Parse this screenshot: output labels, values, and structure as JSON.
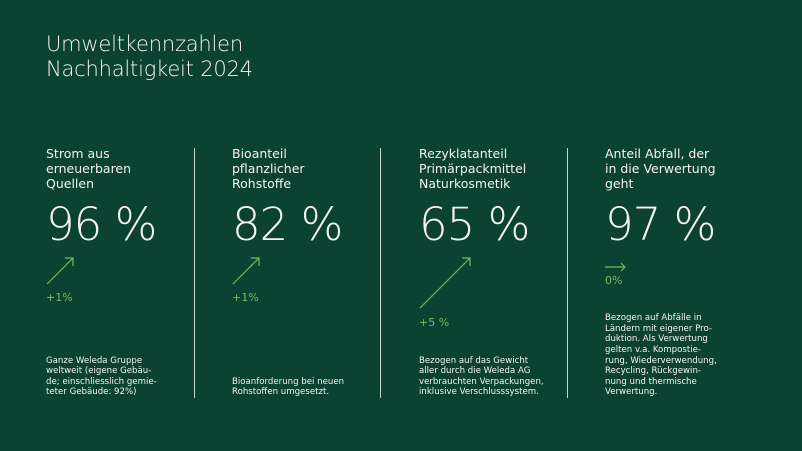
{
  "title": {
    "line1": "Umweltkennzahlen",
    "line2": "Nachhaltigkeit 2024"
  },
  "colors": {
    "background": "#0b4232",
    "accent": "#72bd5e",
    "text": "#f3f4ee"
  },
  "kpis": [
    {
      "label": [
        "Strom aus",
        "erneuerbaren",
        "Quellen"
      ],
      "value": "96 %",
      "trend_icon": "arrow-up-right-icon",
      "change": "+1%",
      "note": [
        "Ganze Weleda Gruppe",
        "weltweit (eigene Gebäu-",
        "de; einschliesslich gemie-",
        "teter Gebäude: 92%)"
      ]
    },
    {
      "label": [
        "Bioanteil",
        "pflanzlicher",
        "Rohstoffe"
      ],
      "value": "82 %",
      "trend_icon": "arrow-up-right-icon",
      "change": "+1%",
      "note": [
        "Bioanforderung bei neuen",
        "Rohstoffen umgesetzt."
      ]
    },
    {
      "label": [
        "Rezyklatanteil",
        "Primärpackmittel",
        "Naturkosmetik"
      ],
      "value": "65 %",
      "trend_icon": "arrow-up-right-icon",
      "change": "+5 %",
      "note": [
        "Bezogen auf das Gewicht",
        "aller durch die Weleda AG",
        "verbrauchten Verpackungen,",
        "inklusive Verschlusssystem."
      ]
    },
    {
      "label": [
        "Anteil Abfall, der",
        "in die Verwertung",
        "geht"
      ],
      "value": "97 %",
      "trend_icon": "arrow-right-icon",
      "change": "0%",
      "note": [
        "Bezogen auf Abfälle in",
        "Ländern mit eigener Pro-",
        "duktion. Als Verwertung",
        "gelten v.a. Kompostie-",
        "rung, Wiederverwendung,",
        "Recycling, Rückgewin-",
        "nung und thermische",
        "Verwertung."
      ]
    }
  ]
}
